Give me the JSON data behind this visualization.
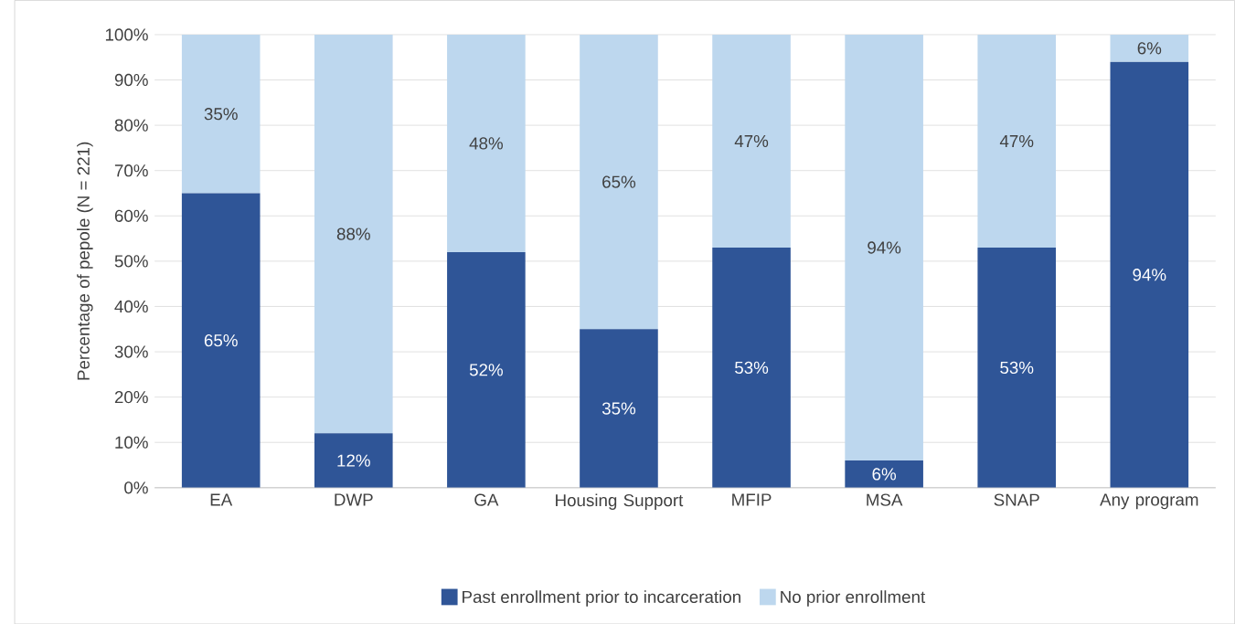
{
  "chart_data": {
    "type": "bar",
    "stacked": true,
    "ylabel": "Percentage of pepole (N = 221)",
    "categories": [
      "EA",
      "DWP",
      "GA",
      "Housing Support",
      "MFIP",
      "MSA",
      "SNAP",
      "Any program"
    ],
    "series": [
      {
        "name": "Past enrollment prior to incarceration",
        "color": "#2f5597",
        "values": [
          65,
          12,
          52,
          35,
          53,
          6,
          53,
          94
        ],
        "value_labels": [
          "65%",
          "12%",
          "52%",
          "35%",
          "53%",
          "6%",
          "53%",
          "94%"
        ]
      },
      {
        "name": "No prior enrollment",
        "color": "#bdd7ee",
        "values": [
          35,
          88,
          48,
          65,
          47,
          94,
          47,
          6
        ],
        "value_labels": [
          "35%",
          "88%",
          "48%",
          "65%",
          "47%",
          "94%",
          "47%",
          "6%"
        ]
      }
    ],
    "ylim": [
      0,
      100
    ],
    "yticks": [
      {
        "value": 0,
        "label": "0%"
      },
      {
        "value": 10,
        "label": "10%"
      },
      {
        "value": 20,
        "label": "20%"
      },
      {
        "value": 30,
        "label": "30%"
      },
      {
        "value": 40,
        "label": "40%"
      },
      {
        "value": 50,
        "label": "50%"
      },
      {
        "value": 60,
        "label": "60%"
      },
      {
        "value": 70,
        "label": "70%"
      },
      {
        "value": 80,
        "label": "80%"
      },
      {
        "value": 90,
        "label": "90%"
      },
      {
        "value": 100,
        "label": "100%"
      }
    ],
    "grid": "y",
    "legend": "bottom"
  }
}
